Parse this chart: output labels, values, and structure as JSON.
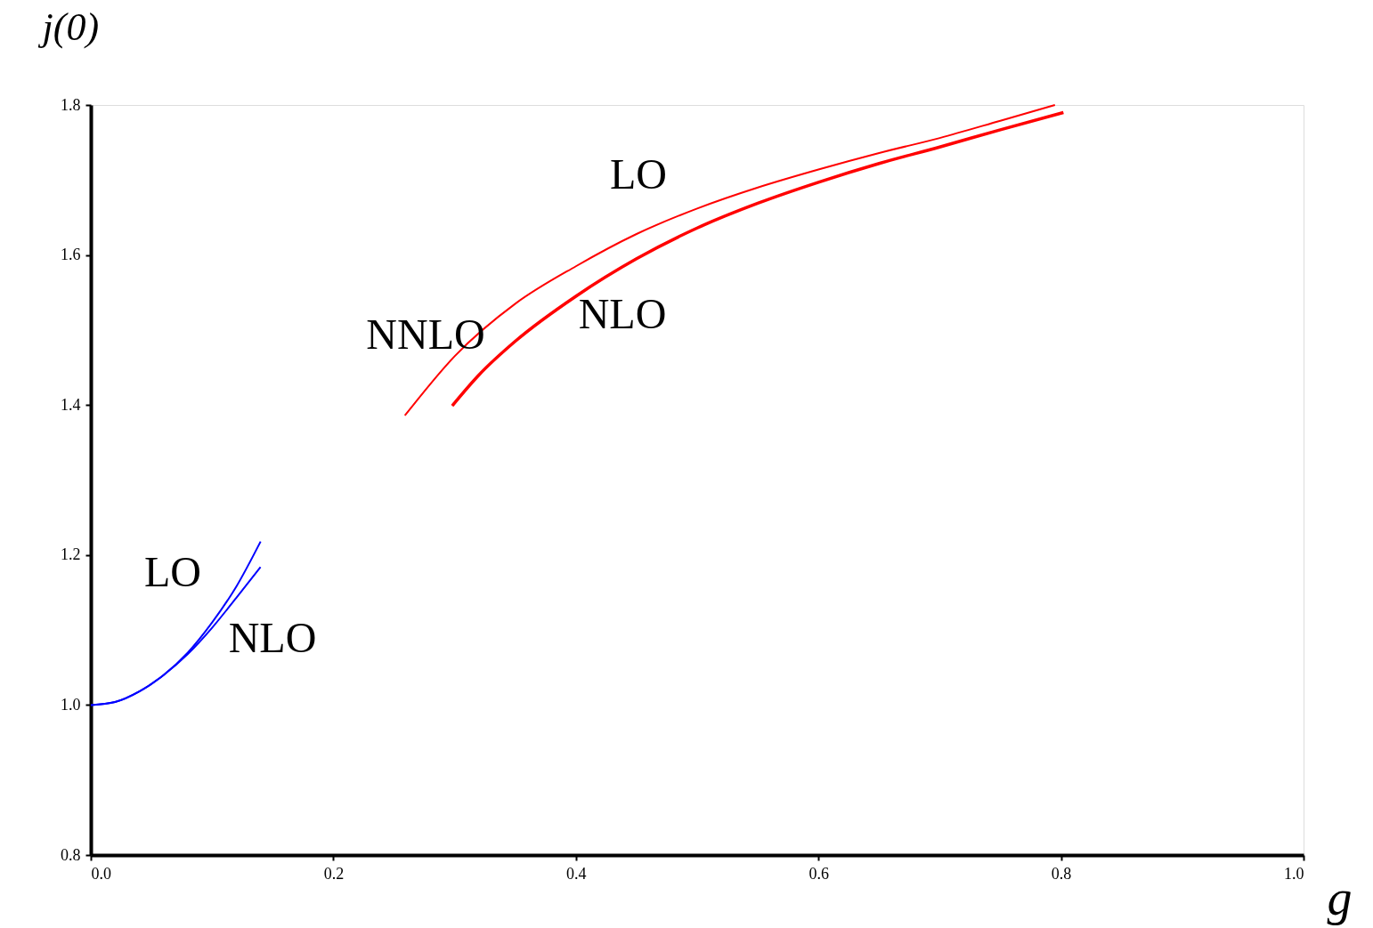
{
  "chart_data": {
    "type": "line",
    "xlabel": "g",
    "ylabel": "j(0)",
    "xlim": [
      0,
      1
    ],
    "ylim": [
      0.8,
      1.8
    ],
    "xticks": [
      {
        "value": 0,
        "label": "0.0"
      },
      0.2,
      0.4,
      0.6,
      0.8,
      {
        "value": 1,
        "label": "1.0"
      }
    ],
    "yticks": [
      0.8,
      {
        "value": 1,
        "label": "1.0"
      },
      1.2,
      1.4,
      1.6,
      1.8
    ],
    "grid": false,
    "marker": "none",
    "line_style": "solid",
    "series": [
      {
        "color": "#0000ff",
        "x": [
          0,
          0.02,
          0.04,
          0.06,
          0.08,
          0.1,
          0.12,
          0.14
        ],
        "values": [
          1.0,
          1.004,
          1.018,
          1.04,
          1.07,
          1.11,
          1.158,
          1.218
        ]
      },
      {
        "color": "#0000ff",
        "x": [
          0,
          0.02,
          0.04,
          0.06,
          0.08,
          0.1,
          0.12,
          0.14
        ],
        "values": [
          1.0,
          1.004,
          1.018,
          1.04,
          1.068,
          1.103,
          1.143,
          1.184
        ]
      },
      {
        "color": "#ff0000",
        "x": [
          0.259,
          0.3,
          0.35,
          0.4,
          0.45,
          0.5,
          0.55,
          0.6,
          0.65,
          0.7,
          0.75,
          0.795
        ],
        "values": [
          1.386,
          1.465,
          1.535,
          1.585,
          1.628,
          1.662,
          1.69,
          1.714,
          1.736,
          1.756,
          1.779,
          1.8
        ]
      },
      {
        "color": "#ff0000",
        "x": [
          0.298,
          0.32,
          0.35,
          0.4,
          0.45,
          0.5,
          0.55,
          0.6,
          0.65,
          0.7,
          0.75,
          0.802
        ],
        "values": [
          1.399,
          1.44,
          1.485,
          1.545,
          1.595,
          1.636,
          1.669,
          1.697,
          1.722,
          1.744,
          1.767,
          1.79
        ]
      }
    ],
    "annotations": [
      "LO",
      "NLO",
      "NNLO",
      "LO",
      "NLO"
    ]
  }
}
